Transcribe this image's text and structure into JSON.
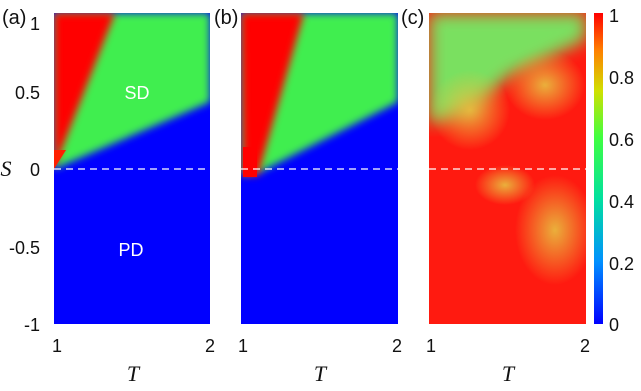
{
  "chart_data": [
    {
      "type": "heatmap",
      "panel_label": "(a)",
      "xlabel": "T",
      "ylabel": "S",
      "xlim": [
        1,
        2
      ],
      "ylim": [
        -1,
        1
      ],
      "xticks": [
        "1",
        "2"
      ],
      "yticks": [
        "1",
        "0.5",
        "0",
        "-0.5",
        "-1"
      ],
      "dashed_line_y": 0,
      "annotations": [
        {
          "text": "SD",
          "x": 1.55,
          "y": 0.47
        },
        {
          "text": "PD",
          "x": 1.5,
          "y": -0.5
        }
      ],
      "boundaries": {
        "red_green": {
          "T": [
            1.0,
            1.39
          ],
          "S": [
            0.0,
            1.0
          ]
        },
        "green_blue": {
          "T": [
            1.0,
            2.0
          ],
          "S": [
            0.0,
            0.42
          ]
        }
      }
    },
    {
      "type": "heatmap",
      "panel_label": "(b)",
      "xlabel": "T",
      "xlim": [
        1,
        2
      ],
      "ylim": [
        -1,
        1
      ],
      "xticks": [
        "1",
        "2"
      ],
      "dashed_line_y": 0,
      "boundaries": {
        "red_green": {
          "T": [
            1.0,
            1.4
          ],
          "S": [
            -0.05,
            1.0
          ]
        },
        "green_blue": {
          "T": [
            1.0,
            2.0
          ],
          "S": [
            -0.05,
            0.42
          ]
        }
      }
    },
    {
      "type": "heatmap",
      "panel_label": "(c)",
      "xlabel": "T",
      "xlim": [
        1,
        2
      ],
      "ylim": [
        -1,
        1
      ],
      "xticks": [
        "1",
        "2"
      ],
      "dashed_line_y": 0,
      "colorbar": {
        "range": [
          0,
          1
        ],
        "ticks": [
          "1",
          "0.8",
          "0.6",
          "0.4",
          "0.2",
          "0"
        ],
        "colormap": [
          "#0000ff",
          "#00a0ff",
          "#00ff80",
          "#c0ff00",
          "#ffb000",
          "#ff0000"
        ]
      }
    }
  ],
  "colors": {
    "high": "#ff0000",
    "mid": "#30ee60",
    "low": "#0000ff",
    "orange": "#f0b040",
    "dashed": "#ffffff"
  }
}
